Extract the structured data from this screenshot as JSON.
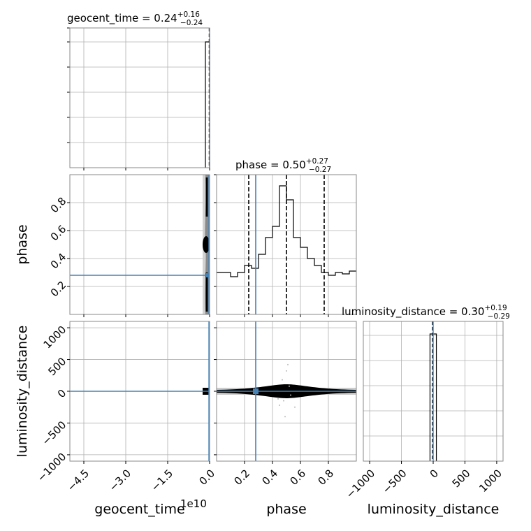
{
  "colors": {
    "truth": "#4682b4",
    "contour_dark": "#000000",
    "contour_mid": "#555555",
    "contour_light": "#cccccc",
    "grid": "#b0b0b0",
    "spine": "#888888"
  },
  "chart_data": {
    "type": "corner",
    "parameters": [
      "geocent_time",
      "phase",
      "luminosity_distance"
    ],
    "truths": {
      "geocent_time": 0.0,
      "phase": 0.28,
      "luminosity_distance": 0.0
    },
    "titles": [
      {
        "param": "geocent_time",
        "prefix": "geocent_time = ",
        "median": "0.24",
        "plus": "+0.16",
        "minus": "−0.24"
      },
      {
        "param": "phase",
        "prefix": "phase = ",
        "median": "0.50",
        "plus": "+0.27",
        "minus": "−0.27"
      },
      {
        "param": "luminosity_distance",
        "prefix": "luminosity_distance = ",
        "median": "0.30",
        "plus": "+0.19",
        "minus": "−0.29"
      }
    ],
    "axis_labels": {
      "geocent_time": "geocent_time",
      "phase": "phase",
      "luminosity_distance": "luminosity_distance"
    },
    "ranges": {
      "geocent_time": [
        -50000000000,
        0
      ],
      "phase": [
        0.0,
        1.0
      ],
      "luminosity_distance": [
        -1100,
        1100
      ]
    },
    "geocent_time_offset_label": "1e10",
    "ticks": {
      "geocent_time": {
        "values": [
          -45000000000,
          -30000000000,
          -15000000000,
          0
        ],
        "labels": [
          "−4.5",
          "−3.0",
          "−1.5",
          "0.0"
        ]
      },
      "phase": {
        "values": [
          0.2,
          0.4,
          0.6,
          0.8
        ],
        "labels": [
          "0.2",
          "0.4",
          "0.6",
          "0.8"
        ]
      },
      "luminosity_distance": {
        "values": [
          -1000,
          -500,
          0,
          500,
          1000
        ],
        "labels": [
          "−1000",
          "−500",
          "0",
          "500",
          "1000"
        ]
      }
    },
    "histograms": {
      "phase": {
        "edges": [
          0.0,
          0.05,
          0.1,
          0.15,
          0.2,
          0.25,
          0.3,
          0.35,
          0.4,
          0.45,
          0.5,
          0.55,
          0.6,
          0.65,
          0.7,
          0.75,
          0.8,
          0.85,
          0.9,
          0.95,
          1.0
        ],
        "counts": [
          30,
          30,
          27,
          30,
          35,
          33,
          43,
          55,
          63,
          92,
          82,
          55,
          48,
          40,
          35,
          30,
          28,
          30,
          29,
          31
        ],
        "quantiles": [
          0.23,
          0.5,
          0.77
        ],
        "ymax": 100
      },
      "luminosity_distance": {
        "edges": [
          -50,
          0,
          50
        ],
        "counts": [
          0.91,
          0.91
        ],
        "quantiles": [
          0.0
        ],
        "ymax": 1.0
      },
      "geocent_time": {
        "edges": [
          -1500000000,
          0
        ],
        "counts": [
          0.9
        ],
        "quantiles": [
          0.0
        ],
        "ymax": 1.0
      }
    },
    "grid": true
  }
}
